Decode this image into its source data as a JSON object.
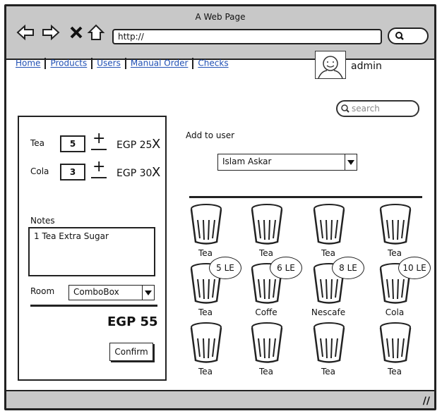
{
  "window": {
    "title": "A Web Page",
    "url": "http://"
  },
  "nav": [
    "Home",
    "Products",
    "Users",
    "Manual Order",
    "Checks"
  ],
  "user": {
    "name": "admin"
  },
  "search": {
    "placeholder": "search"
  },
  "order": {
    "items": [
      {
        "name": "Tea",
        "qty": "5",
        "plus": "+",
        "price": "EGP 25",
        "remove": "X"
      },
      {
        "name": "Cola",
        "qty": "3",
        "plus": "+",
        "price": "EGP 30",
        "remove": "X"
      }
    ],
    "notes_label": "Notes",
    "notes_value": "1 Tea Extra Sugar",
    "room_label": "Room",
    "room_value": "ComboBox",
    "total": "EGP 55",
    "confirm": "Confirm"
  },
  "add_to_user": {
    "label": "Add to user",
    "value": "Islam Askar"
  },
  "products": [
    {
      "name": "Tea",
      "price": ""
    },
    {
      "name": "Tea",
      "price": ""
    },
    {
      "name": "Tea",
      "price": ""
    },
    {
      "name": "Tea",
      "price": ""
    },
    {
      "name": "Tea",
      "price": "5 LE"
    },
    {
      "name": "Coffe",
      "price": "6 LE"
    },
    {
      "name": "Nescafe",
      "price": "8 LE"
    },
    {
      "name": "Cola",
      "price": "10 LE"
    },
    {
      "name": "Tea",
      "price": ""
    },
    {
      "name": "Tea",
      "price": ""
    },
    {
      "name": "Tea",
      "price": ""
    },
    {
      "name": "Tea",
      "price": ""
    }
  ]
}
